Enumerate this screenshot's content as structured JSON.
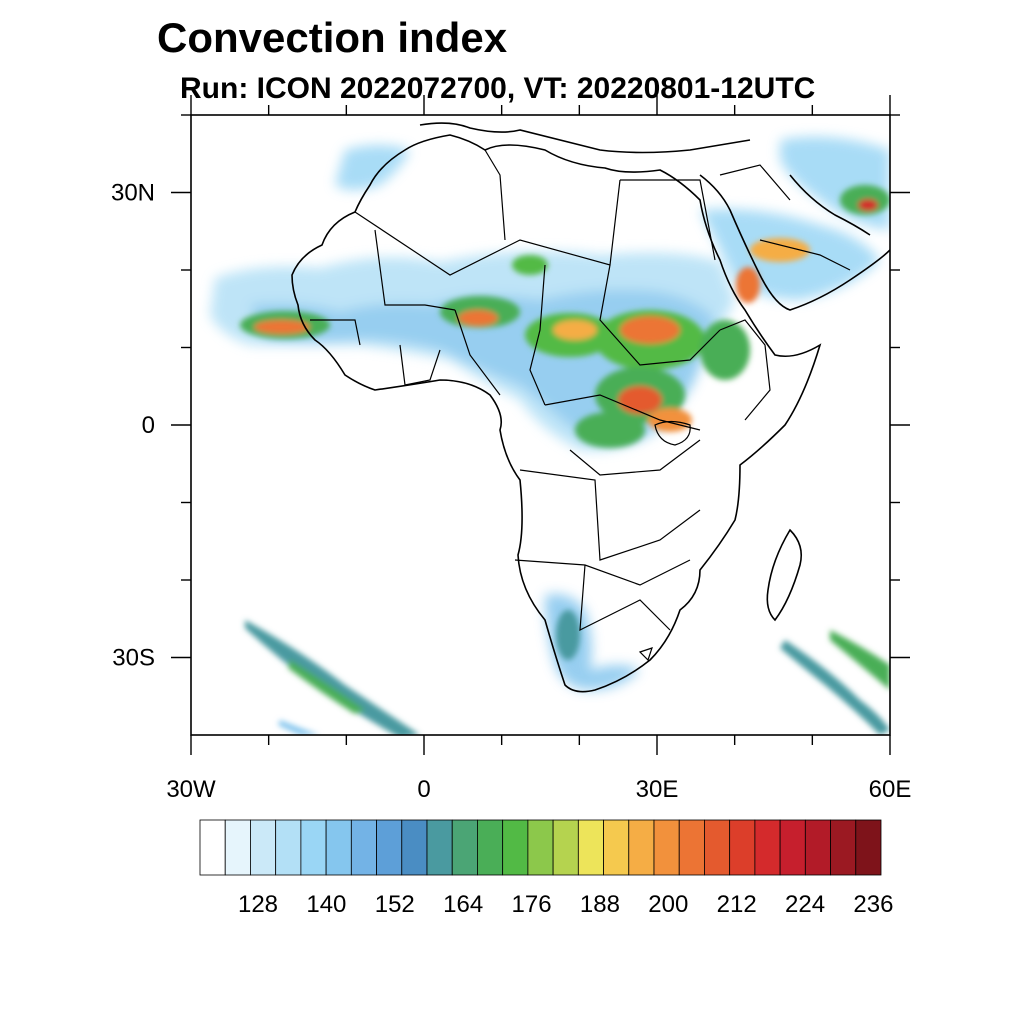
{
  "title": "Convection index",
  "subtitle": "Run: ICON 2022072700,  VT: 20220801-12UTC",
  "map": {
    "region": "Africa",
    "lon_range": [
      -30,
      60
    ],
    "lat_range": [
      -40,
      40
    ],
    "lat_ticks": [
      {
        "lat": 30,
        "label": "30N"
      },
      {
        "lat": 0,
        "label": "0"
      },
      {
        "lat": -30,
        "label": "30S"
      }
    ],
    "lon_ticks": [
      {
        "lon": -30,
        "label": "30W"
      },
      {
        "lon": 0,
        "label": "0"
      },
      {
        "lon": 30,
        "label": "30E"
      },
      {
        "lon": 60,
        "label": "60E"
      }
    ],
    "minor_lat_ticks": [
      40,
      20,
      10,
      -10,
      -20
    ],
    "minor_lon_ticks": [
      -20,
      -10,
      10,
      20,
      40,
      50
    ]
  },
  "colorbar": {
    "colors": [
      "#ffffff",
      "#e6f5fc",
      "#cbe9f8",
      "#b3e0f6",
      "#9ad6f5",
      "#85c6ee",
      "#73b3e6",
      "#5d9fd8",
      "#4a8dc3",
      "#4a9aa0",
      "#4ba575",
      "#4aae57",
      "#52ba45",
      "#8cc84b",
      "#b5d34f",
      "#ede45a",
      "#f5c94e",
      "#f5ad45",
      "#f2913c",
      "#ec7434",
      "#e45a2e",
      "#dc3e2a",
      "#d42a2c",
      "#c61f2d",
      "#b21b28",
      "#9b1922",
      "#7e131a"
    ],
    "labels": [
      "128",
      "140",
      "152",
      "164",
      "176",
      "188",
      "200",
      "212",
      "224",
      "236"
    ]
  },
  "legend_colors": {
    "low": "#9ad6f5",
    "mid": "#4aae57",
    "high": "#ede45a",
    "very_high": "#e45a2e",
    "extreme": "#c61f2d"
  }
}
